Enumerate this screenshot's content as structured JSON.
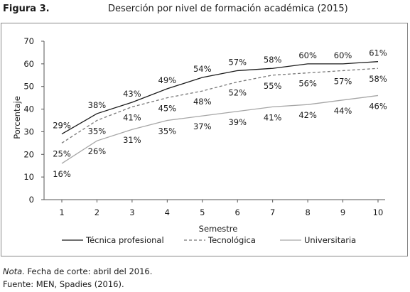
{
  "figure": {
    "label": "Figura 3.",
    "title": "Deserción por nivel de formación académica (2015)"
  },
  "notes": {
    "nota_label": "Nota.",
    "nota_text": "Fecha de corte: abril del 2016.",
    "fuente": "Fuente: MEN, Spadies (2016)."
  },
  "chart_data": {
    "type": "line",
    "title": "",
    "xlabel": "Semestre",
    "ylabel": "Porcentaje",
    "x": [
      1,
      2,
      3,
      4,
      5,
      6,
      7,
      8,
      9,
      10
    ],
    "ylim": [
      0,
      70
    ],
    "yticks": [
      0,
      10,
      20,
      30,
      40,
      50,
      60,
      70
    ],
    "grid": false,
    "legend_position": "bottom",
    "series": [
      {
        "name": "Técnica profesional",
        "values": [
          29,
          38,
          43,
          49,
          54,
          57,
          58,
          60,
          60,
          61
        ],
        "labels": [
          "29%",
          "38%",
          "43%",
          "49%",
          "54%",
          "57%",
          "58%",
          "60%",
          "60%",
          "61%"
        ],
        "color": "#1a1a1a",
        "style": "solid"
      },
      {
        "name": "Tecnológica",
        "values": [
          25,
          35,
          41,
          45,
          48,
          52,
          55,
          56,
          57,
          58
        ],
        "labels": [
          "25%",
          "35%",
          "41%",
          "45%",
          "48%",
          "52%",
          "55%",
          "56%",
          "57%",
          "58%"
        ],
        "color": "#777777",
        "style": "dashed"
      },
      {
        "name": "Universitaria",
        "values": [
          16,
          26,
          31,
          35,
          37,
          39,
          41,
          42,
          44,
          46
        ],
        "labels": [
          "16%",
          "26%",
          "31%",
          "35%",
          "37%",
          "39%",
          "41%",
          "42%",
          "44%",
          "46%"
        ],
        "color": "#a6a6a6",
        "style": "solid"
      }
    ]
  }
}
